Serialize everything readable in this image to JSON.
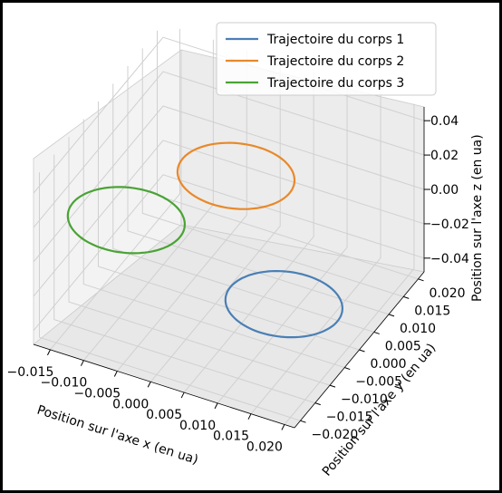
{
  "chart_data": {
    "type": "line",
    "projection": "3d",
    "grid": true,
    "legend_placement": "top-right",
    "xlabel": "Position sur l'axe x (en ua)",
    "ylabel": "Position sur l'axe y (en ua)",
    "zlabel": "Position sur l'axe z (en ua)",
    "x_ticks": [
      "−0.015",
      "−0.010",
      "−0.005",
      "0.000",
      "0.005",
      "0.010",
      "0.015",
      "0.020"
    ],
    "y_ticks": [
      "−0.020",
      "−0.015",
      "−0.010",
      "−0.005",
      "0.000",
      "0.005",
      "0.010",
      "0.015",
      "0.020"
    ],
    "z_ticks": [
      "−0.04",
      "−0.02",
      "0.00",
      "0.02",
      "0.04"
    ],
    "series": [
      {
        "name": "Trajectoire du corps 1",
        "color": "#4a7fb5",
        "center": {
          "x": 0.012,
          "y": -0.004,
          "z": -0.025
        },
        "radius_x": 0.008,
        "radius_y": 0.008
      },
      {
        "name": "Trajectoire du corps 2",
        "color": "#e8892a",
        "center": {
          "x": 0.0,
          "y": 0.007,
          "z": 0.012
        },
        "radius_x": 0.008,
        "radius_y": 0.008
      },
      {
        "name": "Trajectoire du corps 3",
        "color": "#4aa334",
        "center": {
          "x": -0.012,
          "y": -0.003,
          "z": -0.008
        },
        "radius_x": 0.008,
        "radius_y": 0.008
      }
    ]
  }
}
